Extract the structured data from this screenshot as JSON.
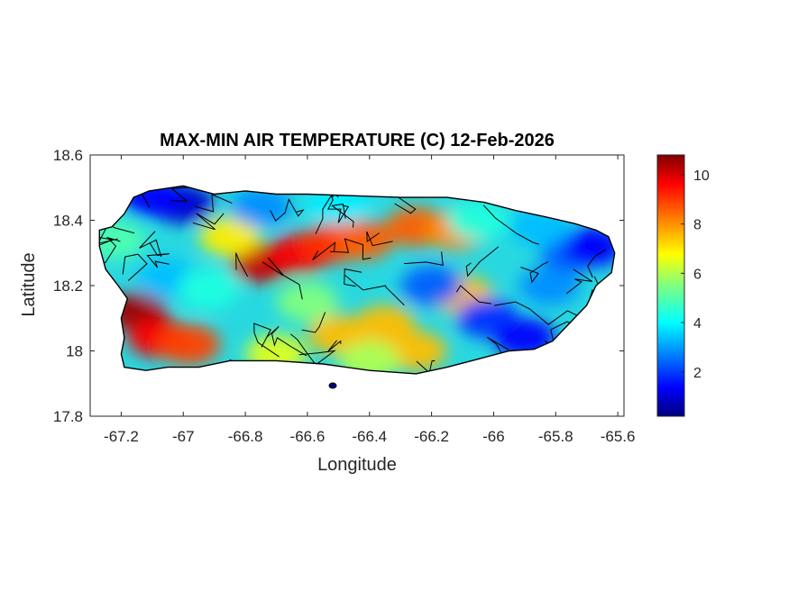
{
  "chart_data": {
    "type": "heatmap",
    "title": "MAX-MIN AIR TEMPERATURE (C) 12-Feb-2026",
    "xlabel": "Longitude",
    "ylabel": "Latitude",
    "xlim": [
      -67.3,
      -65.58
    ],
    "ylim": [
      17.8,
      18.6
    ],
    "xticks": [
      -67.2,
      -67,
      -66.8,
      -66.6,
      -66.4,
      -66.2,
      -66,
      -65.8,
      -65.6
    ],
    "xtick_labels": [
      "-67.2",
      "-67",
      "-66.8",
      "-66.6",
      "-66.4",
      "-66.2",
      "-66",
      "-65.8",
      "-65.6"
    ],
    "yticks": [
      17.8,
      18,
      18.2,
      18.4,
      18.6
    ],
    "ytick_labels": [
      "17.8",
      "18",
      "18.2",
      "18.4",
      "18.6"
    ],
    "colorbar": {
      "colormap": "jet",
      "range": [
        0.2,
        10.8
      ],
      "ticks": [
        2,
        4,
        6,
        8,
        10
      ],
      "tick_labels": [
        "2",
        "4",
        "6",
        "8",
        "10"
      ]
    },
    "grid": false,
    "region_outline": [
      [
        -67.27,
        18.37
      ],
      [
        -67.23,
        18.38
      ],
      [
        -67.19,
        18.42
      ],
      [
        -67.16,
        18.47
      ],
      [
        -67.11,
        18.49
      ],
      [
        -67.0,
        18.505
      ],
      [
        -66.9,
        18.48
      ],
      [
        -66.8,
        18.49
      ],
      [
        -66.7,
        18.48
      ],
      [
        -66.6,
        18.48
      ],
      [
        -66.45,
        18.475
      ],
      [
        -66.3,
        18.47
      ],
      [
        -66.15,
        18.47
      ],
      [
        -66.03,
        18.455
      ],
      [
        -65.93,
        18.43
      ],
      [
        -65.83,
        18.41
      ],
      [
        -65.74,
        18.39
      ],
      [
        -65.67,
        18.37
      ],
      [
        -65.63,
        18.35
      ],
      [
        -65.61,
        18.3
      ],
      [
        -65.62,
        18.24
      ],
      [
        -65.67,
        18.2
      ],
      [
        -65.7,
        18.14
      ],
      [
        -65.76,
        18.08
      ],
      [
        -65.81,
        18.03
      ],
      [
        -65.87,
        18.005
      ],
      [
        -65.95,
        18.0
      ],
      [
        -66.05,
        17.975
      ],
      [
        -66.15,
        17.95
      ],
      [
        -66.25,
        17.93
      ],
      [
        -66.4,
        17.94
      ],
      [
        -66.55,
        17.96
      ],
      [
        -66.7,
        17.97
      ],
      [
        -66.85,
        17.97
      ],
      [
        -66.95,
        17.95
      ],
      [
        -67.05,
        17.95
      ],
      [
        -67.12,
        17.94
      ],
      [
        -67.19,
        17.95
      ],
      [
        -67.2,
        17.99
      ],
      [
        -67.19,
        18.04
      ],
      [
        -67.2,
        18.1
      ],
      [
        -67.18,
        18.16
      ],
      [
        -67.21,
        18.2
      ],
      [
        -67.25,
        18.25
      ],
      [
        -67.27,
        18.32
      ]
    ],
    "temperature_centers": [
      {
        "lon": -67.15,
        "lat": 18.12,
        "value": 10.5
      },
      {
        "lon": -67.08,
        "lat": 18.04,
        "value": 9.5
      },
      {
        "lon": -66.98,
        "lat": 18.02,
        "value": 8.8
      },
      {
        "lon": -66.75,
        "lat": 18.27,
        "value": 10.0
      },
      {
        "lon": -66.62,
        "lat": 18.3,
        "value": 9.5
      },
      {
        "lon": -66.52,
        "lat": 18.33,
        "value": 9.0
      },
      {
        "lon": -66.42,
        "lat": 18.34,
        "value": 8.5
      },
      {
        "lon": -66.25,
        "lat": 18.38,
        "value": 8.5
      },
      {
        "lon": -66.12,
        "lat": 18.37,
        "value": 8.0
      },
      {
        "lon": -66.5,
        "lat": 18.05,
        "value": 7.5
      },
      {
        "lon": -66.35,
        "lat": 18.08,
        "value": 7.5
      },
      {
        "lon": -66.25,
        "lat": 18.0,
        "value": 7.5
      },
      {
        "lon": -66.1,
        "lat": 18.17,
        "value": 7.5
      },
      {
        "lon": -66.85,
        "lat": 18.35,
        "value": 7.0
      },
      {
        "lon": -67.0,
        "lat": 18.45,
        "value": 1.0
      },
      {
        "lon": -67.1,
        "lat": 18.47,
        "value": 1.5
      },
      {
        "lon": -66.75,
        "lat": 18.44,
        "value": 3.0
      },
      {
        "lon": -66.5,
        "lat": 18.45,
        "value": 4.0
      },
      {
        "lon": -67.05,
        "lat": 18.22,
        "value": 3.5
      },
      {
        "lon": -66.92,
        "lat": 18.19,
        "value": 4.5
      },
      {
        "lon": -66.6,
        "lat": 18.15,
        "value": 5.5
      },
      {
        "lon": -66.2,
        "lat": 18.2,
        "value": 2.5
      },
      {
        "lon": -66.02,
        "lat": 18.1,
        "value": 2.0
      },
      {
        "lon": -65.9,
        "lat": 18.04,
        "value": 1.5
      },
      {
        "lon": -65.82,
        "lat": 18.2,
        "value": 3.0
      },
      {
        "lon": -65.75,
        "lat": 18.3,
        "value": 2.5
      },
      {
        "lon": -65.68,
        "lat": 18.32,
        "value": 1.5
      },
      {
        "lon": -65.85,
        "lat": 18.38,
        "value": 3.5
      },
      {
        "lon": -66.05,
        "lat": 18.4,
        "value": 4.5
      },
      {
        "lon": -67.22,
        "lat": 18.34,
        "value": 5.0
      },
      {
        "lon": -66.7,
        "lat": 17.99,
        "value": 6.5
      },
      {
        "lon": -66.4,
        "lat": 17.97,
        "value": 6.0
      }
    ]
  }
}
